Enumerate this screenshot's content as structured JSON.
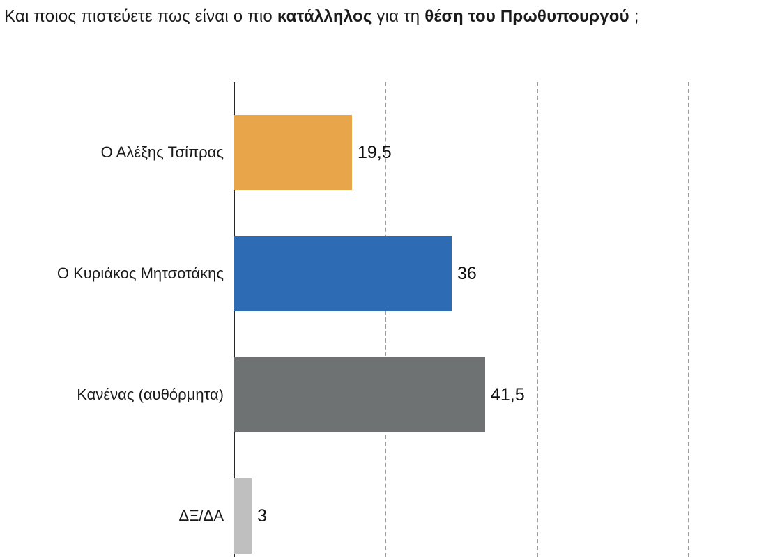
{
  "title": {
    "parts": [
      {
        "text": "Και ποιος πιστεύετε πως είναι ο πιο "
      },
      {
        "text": "κατάλληλος",
        "bold": true
      },
      {
        "text": " για τη "
      },
      {
        "text": "θέση του Πρωθυπουργού",
        "bold": true
      },
      {
        "text": " ;"
      }
    ]
  },
  "chart_data": {
    "type": "bar",
    "orientation": "horizontal",
    "title": "Και ποιος πιστεύετε πως είναι ο πιο κατάλληλος για τη θέση του Πρωθυπουργού ;",
    "categories": [
      "Ο Αλέξης Τσίπρας",
      "Ο Κυριάκος Μητσοτάκης",
      "Κανένας (αυθόρμητα)",
      "ΔΞ/ΔΑ"
    ],
    "values": [
      19.5,
      36,
      41.5,
      3
    ],
    "value_labels": [
      "19,5",
      "36",
      "41,5",
      "3"
    ],
    "bar_colors": [
      "#E9A54A",
      "#2D6CB4",
      "#6E7272",
      "#BFBFBF"
    ],
    "xlim": [
      0,
      88
    ],
    "gridlines": [
      25,
      50,
      75
    ],
    "grid_style": "dashed",
    "legend": "none",
    "axis_color": "#262626",
    "gridline_color": "#9c9c9c"
  }
}
